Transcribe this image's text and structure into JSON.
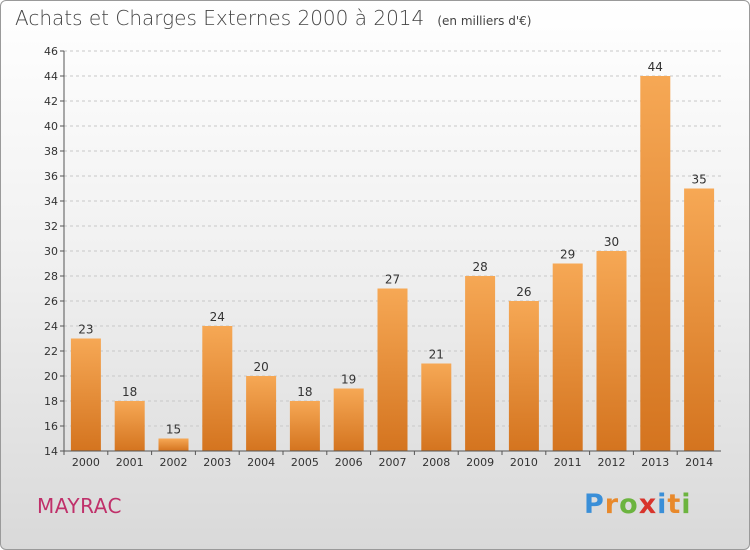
{
  "header": {
    "title": "Achats et Charges Externes 2000 à 2014",
    "subtitle": "(en milliers d'€)"
  },
  "place_label": "MAYRAC",
  "brand": {
    "letters": [
      {
        "char": "P",
        "color": "#3a8fd8"
      },
      {
        "char": "r",
        "color": "#e8892b"
      },
      {
        "char": "o",
        "color": "#6cb43f"
      },
      {
        "char": "x",
        "color": "#d8342c"
      },
      {
        "char": "i",
        "color": "#3a8fd8"
      },
      {
        "char": "t",
        "color": "#e8892b"
      },
      {
        "char": "i",
        "color": "#6cb43f"
      }
    ]
  },
  "colors": {
    "bar_light": "#f6a855",
    "bar_dark": "#d4741f",
    "grid": "#c8c8c8",
    "axis": "#555555",
    "text": "#333333"
  },
  "chart_data": {
    "type": "bar",
    "title": "Achats et Charges Externes 2000 à 2014",
    "subtitle": "(en milliers d'€)",
    "categories": [
      "2000",
      "2001",
      "2002",
      "2003",
      "2004",
      "2005",
      "2006",
      "2007",
      "2008",
      "2009",
      "2010",
      "2011",
      "2012",
      "2013",
      "2014"
    ],
    "values": [
      23,
      18,
      15,
      24,
      20,
      18,
      19,
      27,
      21,
      28,
      26,
      29,
      30,
      44,
      35
    ],
    "ylim": [
      14,
      46
    ],
    "yticks": [
      14,
      16,
      18,
      20,
      22,
      24,
      26,
      28,
      30,
      32,
      34,
      36,
      38,
      40,
      42,
      44,
      46
    ],
    "grid": true,
    "legend": "none",
    "xlabel": "",
    "ylabel": ""
  }
}
